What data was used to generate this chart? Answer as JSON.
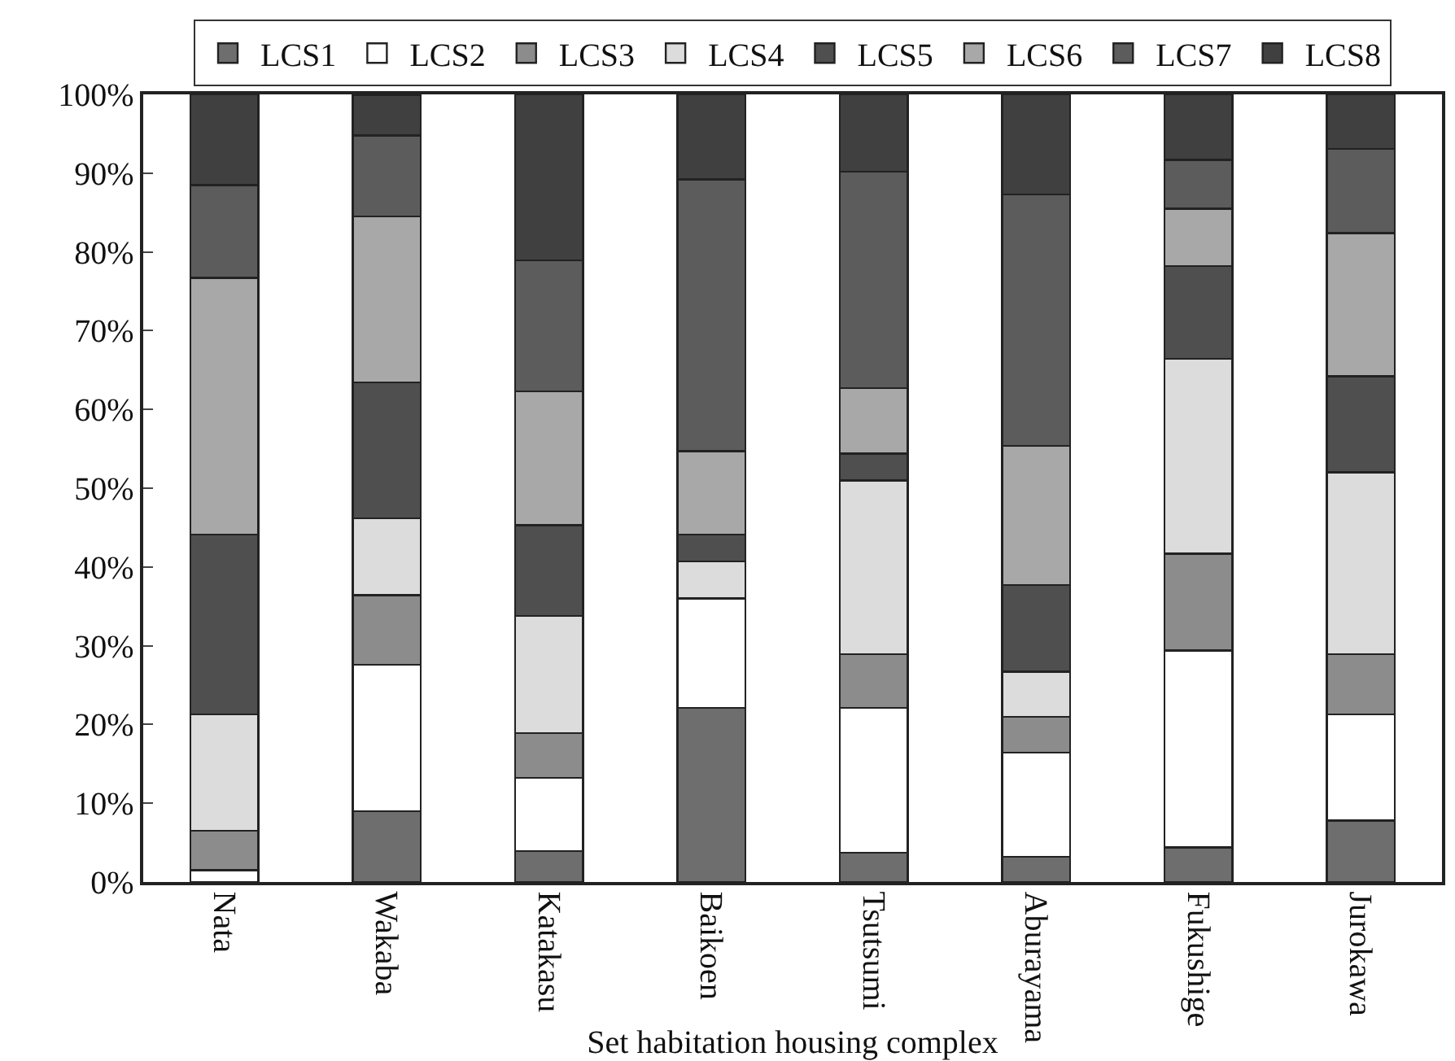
{
  "chart_data": {
    "type": "bar",
    "stacked": true,
    "xlabel": "Set habitation housing complex",
    "categories": [
      "Nata",
      "Wakaba",
      "Katakasu",
      "Baikoen",
      "Tsutsumi",
      "Aburayama",
      "Fukushige",
      "Jurokawa"
    ],
    "series": [
      {
        "name": "LCS1",
        "color": "#6e6e6e",
        "values": [
          0,
          9,
          3.9,
          22.1,
          3.7,
          3.2,
          4.4,
          7.8
        ]
      },
      {
        "name": "LCS2",
        "color": "#ffffff",
        "values": [
          1.5,
          18.6,
          9.3,
          13.9,
          18.4,
          13.2,
          25,
          13.5
        ]
      },
      {
        "name": "LCS3",
        "color": "#8c8c8c",
        "values": [
          5,
          8.8,
          5.7,
          0,
          6.8,
          4.6,
          12.3,
          7.6
        ]
      },
      {
        "name": "LCS4",
        "color": "#dcdcdc",
        "values": [
          14.8,
          9.8,
          14.9,
          4.7,
          22.1,
          5.7,
          24.7,
          23.1
        ]
      },
      {
        "name": "LCS5",
        "color": "#4f4f4f",
        "values": [
          22.8,
          17.2,
          11.5,
          3.4,
          3.4,
          11,
          11.8,
          12.2
        ]
      },
      {
        "name": "LCS6",
        "color": "#a8a8a8",
        "values": [
          32.6,
          21.1,
          17,
          10.6,
          8.3,
          17.7,
          7.3,
          18.2
        ]
      },
      {
        "name": "LCS7",
        "color": "#5c5c5c",
        "values": [
          11.8,
          10.3,
          16.6,
          34.5,
          27.5,
          31.9,
          6.2,
          10.7
        ]
      },
      {
        "name": "LCS8",
        "color": "#404040",
        "values": [
          11.5,
          5.1,
          21.1,
          10.8,
          9.8,
          12.7,
          8.3,
          6.9
        ]
      }
    ],
    "ylim": [
      0,
      100
    ],
    "yticks": [
      {
        "value": 0,
        "label": "0%"
      },
      {
        "value": 10,
        "label": "10%"
      },
      {
        "value": 20,
        "label": "20%"
      },
      {
        "value": 30,
        "label": "30%"
      },
      {
        "value": 40,
        "label": "40%"
      },
      {
        "value": 50,
        "label": "50%"
      },
      {
        "value": 60,
        "label": "60%"
      },
      {
        "value": 70,
        "label": "70%"
      },
      {
        "value": 80,
        "label": "80%"
      },
      {
        "value": 90,
        "label": "90%"
      },
      {
        "value": 100,
        "label": "100%"
      }
    ],
    "grid": false,
    "legend": "top"
  }
}
